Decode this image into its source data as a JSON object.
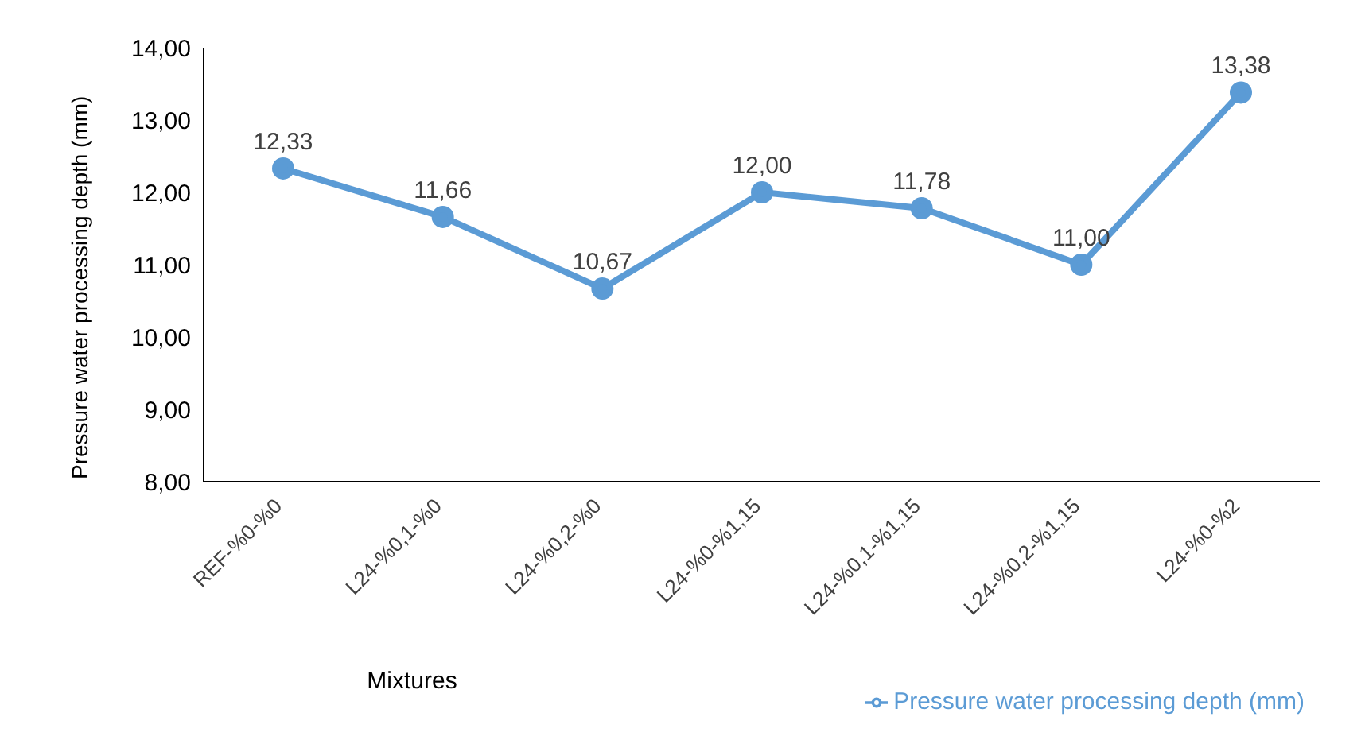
{
  "chart_data": {
    "type": "line",
    "xlabel": "Mixtures",
    "ylabel": "Pressure water processing depth (mm)",
    "categories": [
      "REF-%0-%0",
      "L24-%0,1-%0",
      "L24-%0,2-%0",
      "L24-%0-%1,15",
      "L24-%0,1-%1,15",
      "L24-%0,2-%1,15",
      "L24-%0-%2"
    ],
    "series": [
      {
        "name": "Pressure water processing depth (mm)",
        "color": "#5b9bd5",
        "values": [
          12.33,
          11.66,
          10.67,
          12.0,
          11.78,
          11.0,
          13.38
        ],
        "value_labels": [
          "12,33",
          "11,66",
          "10,67",
          "12,00",
          "11,78",
          "11,00",
          "13,38"
        ]
      }
    ],
    "ylim": [
      8,
      14
    ],
    "yticks": [
      {
        "value": 8,
        "label": "8,00"
      },
      {
        "value": 9,
        "label": "9,00"
      },
      {
        "value": 10,
        "label": "10,00"
      },
      {
        "value": 11,
        "label": "11,00"
      },
      {
        "value": 12,
        "label": "12,00"
      },
      {
        "value": 13,
        "label": "13,00"
      },
      {
        "value": 14,
        "label": "14,00"
      }
    ],
    "grid": false,
    "legend": "bottom right",
    "marker": "circle",
    "line_style": "solid"
  }
}
